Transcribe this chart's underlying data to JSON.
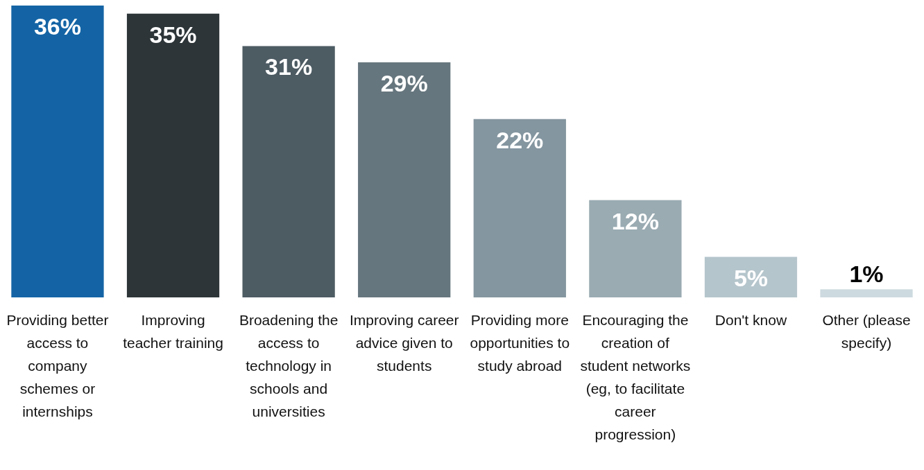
{
  "chart_data": {
    "type": "bar",
    "categories": [
      "Providing better access to company schemes or internships",
      "Improving teacher training",
      "Broadening the access to technology in schools and universities",
      "Improving career advice given to students",
      "Providing more opportunities to study abroad",
      "Encouraging the creation of student networks (eg, to facilitate career progression)",
      "Don't know",
      "Other (please specify)"
    ],
    "values": [
      36,
      35,
      31,
      29,
      22,
      12,
      5,
      1
    ],
    "colors": [
      "#1464a5",
      "#2d3539",
      "#4d5b63",
      "#66767e",
      "#8496a0",
      "#9aabb2",
      "#b5c5cc",
      "#cddbe0"
    ],
    "value_labels": [
      "36%",
      "35%",
      "31%",
      "29%",
      "22%",
      "12%",
      "5%",
      "1%"
    ],
    "ylim": [
      0,
      36
    ]
  }
}
